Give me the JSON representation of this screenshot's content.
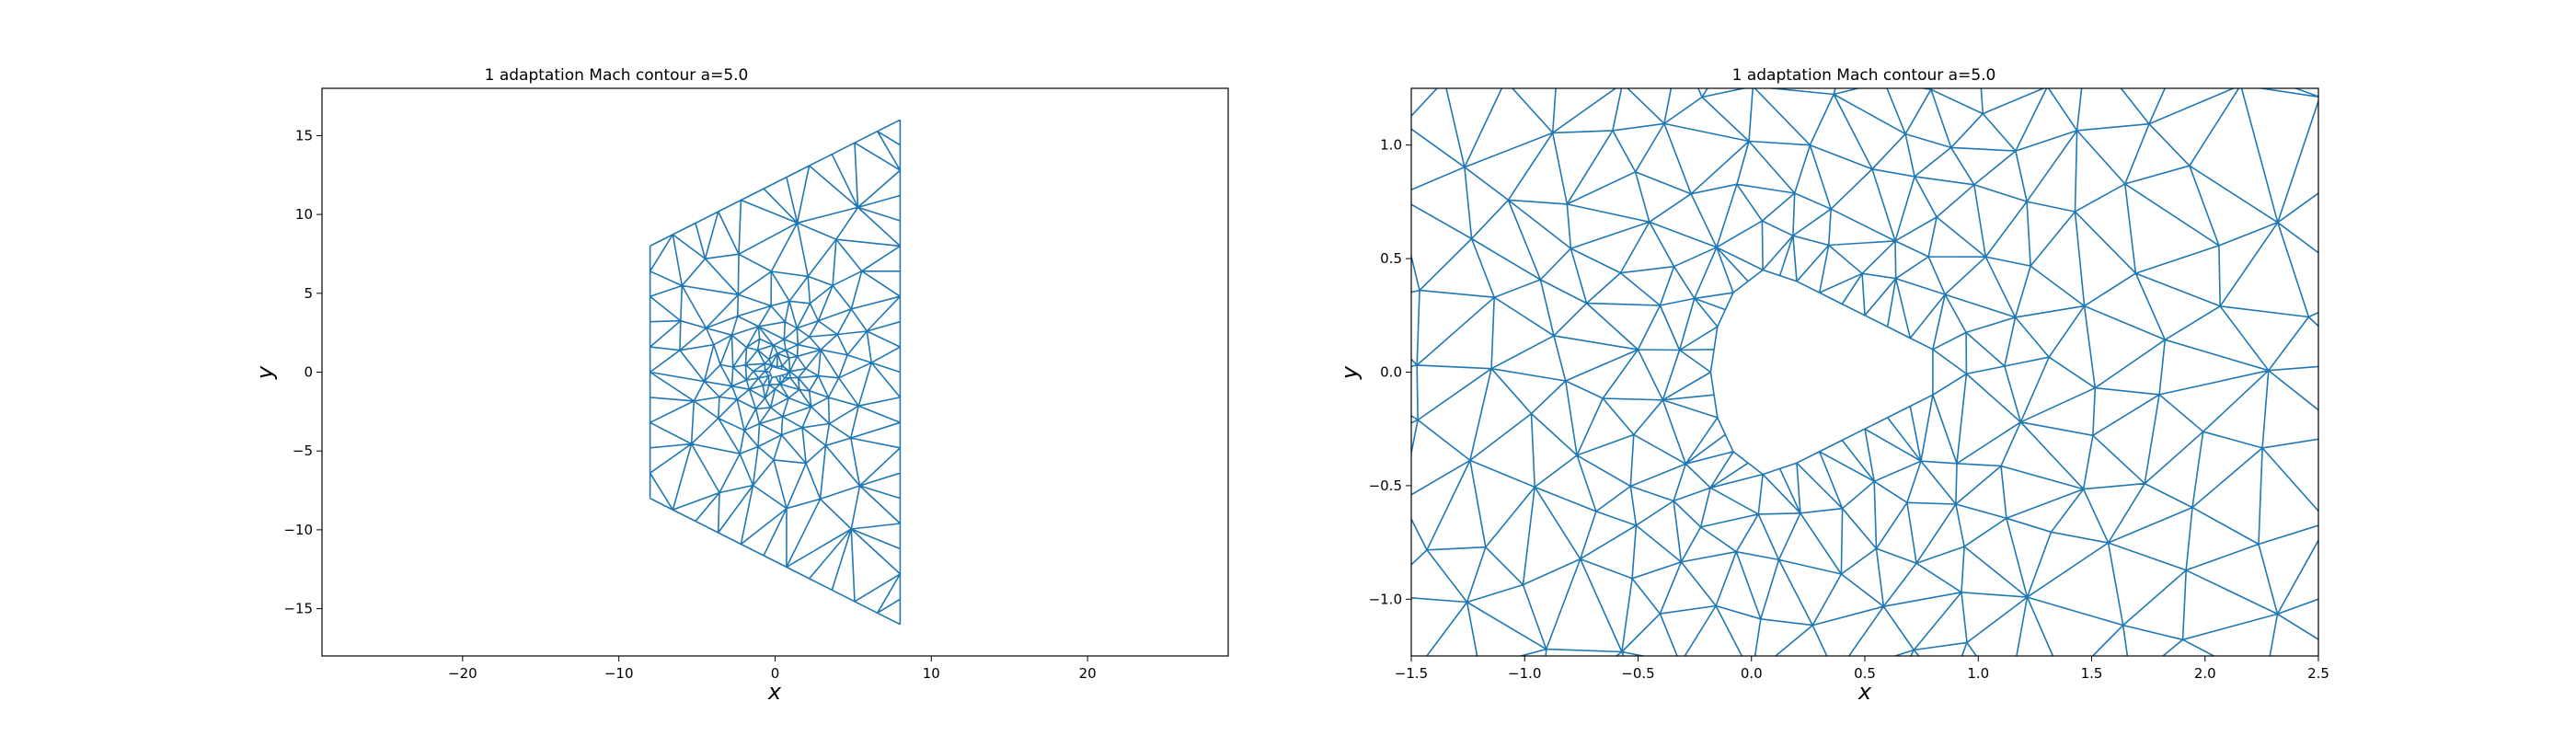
{
  "chart_data": [
    {
      "type": "mesh",
      "title": "1 adaptation Mach contour a=5.0",
      "xlabel": "x",
      "ylabel": "y",
      "xlim": [
        -29,
        29
      ],
      "ylim": [
        -18,
        18
      ],
      "xticks": [
        -20,
        -10,
        0,
        10,
        20
      ],
      "yticks": [
        -15,
        -10,
        -5,
        0,
        5,
        10,
        15
      ],
      "xtick_labels": [
        "−20",
        "−10",
        "0",
        "10",
        "20"
      ],
      "ytick_labels": [
        "−15",
        "−10",
        "−5",
        "0",
        "5",
        "10",
        "15"
      ],
      "mesh_color": "#1f77b4",
      "grid": false,
      "domain_outline": [
        [
          -8,
          -8
        ],
        [
          8,
          -16
        ],
        [
          8,
          16
        ],
        [
          -8,
          8
        ]
      ]
    },
    {
      "type": "mesh",
      "title": "1 adaptation Mach contour a=5.0",
      "xlabel": "x",
      "ylabel": "y",
      "xlim": [
        -1.5,
        2.5
      ],
      "ylim": [
        -1.25,
        1.25
      ],
      "xticks": [
        -1.5,
        -1.0,
        -0.5,
        0.0,
        0.5,
        1.0,
        1.5,
        2.0,
        2.5
      ],
      "yticks": [
        -1.0,
        -0.5,
        0.0,
        0.5,
        1.0
      ],
      "xtick_labels": [
        "−1.5",
        "−1.0",
        "−0.5",
        "0.0",
        "0.5",
        "1.0",
        "1.5",
        "2.0",
        "2.5"
      ],
      "ytick_labels": [
        "−1.0",
        "−0.5",
        "0.0",
        "0.5",
        "1.0"
      ],
      "mesh_color": "#1f77b4",
      "grid": false,
      "body_outline": [
        [
          0.8,
          0.1
        ],
        [
          0.6,
          0.2
        ],
        [
          0.4,
          0.3
        ],
        [
          0.2,
          0.4
        ],
        [
          0.05,
          0.45
        ],
        [
          -0.08,
          0.35
        ],
        [
          -0.15,
          0.2
        ],
        [
          -0.18,
          0.0
        ],
        [
          -0.15,
          -0.2
        ],
        [
          -0.08,
          -0.35
        ],
        [
          0.05,
          -0.45
        ],
        [
          0.2,
          -0.4
        ],
        [
          0.4,
          -0.3
        ],
        [
          0.6,
          -0.2
        ],
        [
          0.8,
          -0.1
        ]
      ]
    }
  ]
}
